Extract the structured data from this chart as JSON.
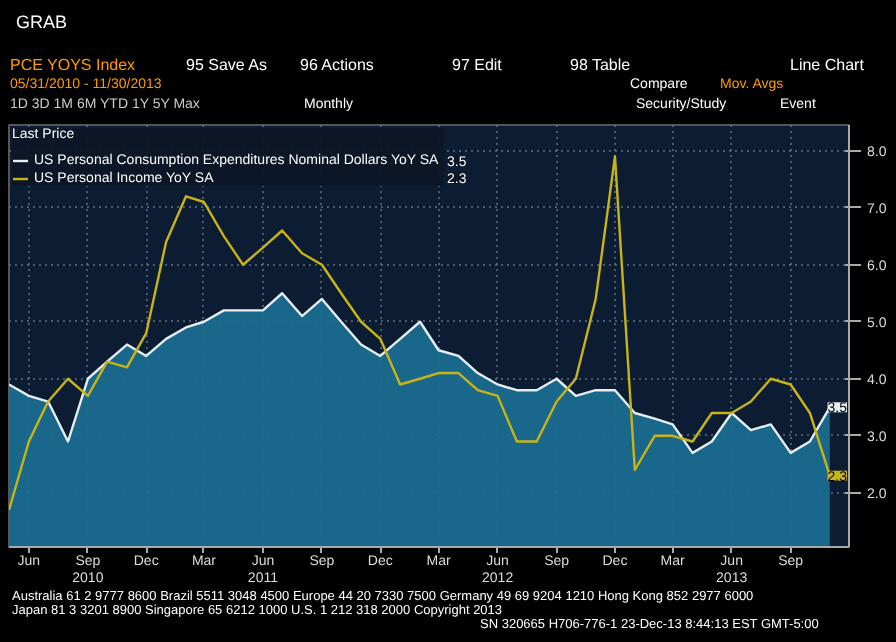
{
  "chart_data": {
    "type": "area",
    "title": "PCE YOYS Index",
    "legend_title": "Last Price",
    "x": [
      "2010-05",
      "2010-06",
      "2010-07",
      "2010-08",
      "2010-09",
      "2010-10",
      "2010-11",
      "2010-12",
      "2011-01",
      "2011-02",
      "2011-03",
      "2011-04",
      "2011-05",
      "2011-06",
      "2011-07",
      "2011-08",
      "2011-09",
      "2011-10",
      "2011-11",
      "2011-12",
      "2012-01",
      "2012-02",
      "2012-03",
      "2012-04",
      "2012-05",
      "2012-06",
      "2012-07",
      "2012-08",
      "2012-09",
      "2012-10",
      "2012-11",
      "2012-12",
      "2013-01",
      "2013-02",
      "2013-03",
      "2013-04",
      "2013-05",
      "2013-06",
      "2013-07",
      "2013-08",
      "2013-09",
      "2013-10",
      "2013-11"
    ],
    "series": [
      {
        "name": "US Personal Consumption Expenditures Nominal Dollars YoY SA",
        "color": "#e6eef2",
        "values": [
          3.9,
          3.7,
          3.6,
          2.9,
          4.0,
          4.3,
          4.6,
          4.4,
          4.7,
          4.9,
          5.0,
          5.2,
          5.2,
          5.2,
          5.5,
          5.1,
          5.4,
          5.0,
          4.6,
          4.4,
          4.7,
          5.0,
          4.5,
          4.4,
          4.1,
          3.9,
          3.8,
          3.8,
          4.0,
          3.7,
          3.8,
          3.8,
          3.4,
          3.3,
          3.2,
          2.7,
          2.9,
          3.4,
          3.1,
          3.2,
          2.7,
          2.9,
          3.5
        ],
        "value_labels": [
          null,
          null,
          null,
          null,
          null,
          null,
          null,
          null,
          null,
          null,
          null,
          null,
          null,
          null,
          null,
          null,
          null,
          null,
          null,
          null,
          null,
          null,
          null,
          null,
          null,
          null,
          null,
          null,
          null,
          null,
          null,
          null,
          null,
          null,
          null,
          null,
          null,
          null,
          null,
          null,
          null,
          null,
          "3.5"
        ]
      },
      {
        "name": "US Personal Income YoY SA",
        "type": "line",
        "color": "#c8b416",
        "values": [
          1.7,
          2.9,
          3.6,
          4.0,
          3.7,
          4.3,
          4.2,
          4.8,
          6.4,
          7.2,
          7.1,
          6.5,
          6.0,
          6.3,
          6.6,
          6.2,
          6.0,
          5.5,
          5.0,
          4.7,
          3.9,
          4.0,
          4.1,
          4.1,
          3.8,
          3.7,
          2.9,
          2.9,
          3.6,
          4.0,
          5.4,
          7.9,
          2.4,
          3.0,
          3.0,
          2.9,
          3.4,
          3.4,
          3.6,
          4.0,
          3.9,
          3.4,
          2.3
        ],
        "value_labels": [
          null,
          null,
          null,
          null,
          null,
          null,
          null,
          null,
          null,
          null,
          null,
          null,
          null,
          null,
          null,
          null,
          null,
          null,
          null,
          null,
          null,
          null,
          null,
          null,
          null,
          null,
          null,
          null,
          null,
          null,
          null,
          null,
          null,
          null,
          null,
          null,
          null,
          null,
          null,
          null,
          null,
          null,
          "2.3"
        ]
      }
    ],
    "xlim": [
      "2010-05",
      "2013-12"
    ],
    "xticks": [
      {
        "value": "2010-06",
        "label": "Jun"
      },
      {
        "value": "2010-09",
        "label": "Sep\n2010"
      },
      {
        "value": "2010-12",
        "label": "Dec"
      },
      {
        "value": "2011-03",
        "label": "Mar"
      },
      {
        "value": "2011-06",
        "label": "Jun\n2011"
      },
      {
        "value": "2011-09",
        "label": "Sep"
      },
      {
        "value": "2011-12",
        "label": "Dec"
      },
      {
        "value": "2012-03",
        "label": "Mar"
      },
      {
        "value": "2012-06",
        "label": "Jun\n2012"
      },
      {
        "value": "2012-09",
        "label": "Sep"
      },
      {
        "value": "2012-12",
        "label": "Dec"
      },
      {
        "value": "2013-03",
        "label": "Mar"
      },
      {
        "value": "2013-06",
        "label": "Jun\n2013"
      },
      {
        "value": "2013-09",
        "label": "Sep"
      }
    ],
    "ylim": [
      1.05,
      8.45
    ],
    "yticks": [
      {
        "value": 2,
        "label": "2.0"
      },
      {
        "value": 3,
        "label": "3.0"
      },
      {
        "value": 4,
        "label": "4.0"
      },
      {
        "value": 5,
        "label": "5.0"
      },
      {
        "value": 6,
        "label": "6.0"
      },
      {
        "value": 7,
        "label": "7.0"
      },
      {
        "value": 8,
        "label": "8.0"
      }
    ],
    "grid": true,
    "legend": "top left",
    "annotations": [
      "GRAB",
      "95 Save As",
      "96 Actions",
      "97 Edit",
      "98 Table",
      "Line Chart",
      "05/31/2010 - 11/30/2013",
      "Compare",
      "Mov. Avgs",
      "1D  3D  1M  6M  YTD  1Y  5Y  Max",
      "Monthly",
      "Security/Study",
      "Event",
      "Australia 61 2 9777 8600 Brazil 5511 3048 4500 Europe 44 20 7330 7500 Germany 49 69 9204 1210 Hong Kong 852 2977 6000",
      "Japan 81 3 3201 8900   Singapore 65 6212 1000   U.S. 1 212 318 2000   Copyright 2013",
      "SN 320665 H706-776-1 23-Dec-13  8:44:13 EST  GMT-5:00"
    ]
  }
}
